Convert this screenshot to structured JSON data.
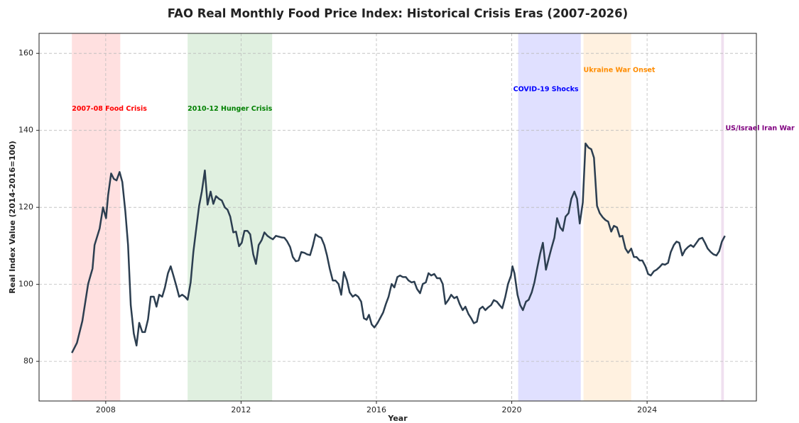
{
  "chart_data": {
    "type": "line",
    "title": "FAO Real Monthly Food Price Index: Historical Crisis Eras (2007-2026)",
    "x_label": "Year",
    "y_label": "Real Index Value (2014-2016=100)",
    "color": "#2c3e50",
    "grid": true,
    "xlim": [
      2006.03,
      2027.23
    ],
    "ylim": [
      69.7,
      165.2
    ],
    "xticks": [
      2008,
      2012,
      2016,
      2020,
      2024
    ],
    "yticks": [
      80,
      100,
      120,
      140,
      160
    ],
    "eras": [
      {
        "label": "2007-08 Food Crisis",
        "start": 2007.0,
        "end": 2008.43,
        "color": "#ff0000"
      },
      {
        "label": "2010-12 Hunger Crisis",
        "start": 2010.42,
        "end": 2012.92,
        "color": "#008000"
      },
      {
        "label": "COVID-19 Shocks",
        "start": 2020.19,
        "end": 2022.04,
        "color": "#0000ff"
      },
      {
        "label": "Ukraine War Onset",
        "start": 2022.12,
        "end": 2023.53,
        "color": "#ff8c00"
      },
      {
        "label": "US/Israel Iran War",
        "start": 2026.19,
        "end": 2026.27,
        "color": "#800080"
      }
    ],
    "x": [
      2007.0,
      2007.15,
      2007.31,
      2007.48,
      2007.61,
      2007.67,
      2007.82,
      2007.92,
      2008.01,
      2008.07,
      2008.16,
      2008.24,
      2008.32,
      2008.41,
      2008.49,
      2008.58,
      2008.66,
      2008.74,
      2008.83,
      2008.91,
      2008.99,
      2009.08,
      2009.16,
      2009.25,
      2009.33,
      2009.42,
      2009.5,
      2009.58,
      2009.67,
      2009.75,
      2009.84,
      2009.92,
      2010.0,
      2010.09,
      2010.17,
      2010.26,
      2010.34,
      2010.42,
      2010.51,
      2010.59,
      2010.68,
      2010.76,
      2010.84,
      2010.93,
      2011.01,
      2011.1,
      2011.18,
      2011.26,
      2011.35,
      2011.43,
      2011.52,
      2011.6,
      2011.68,
      2011.77,
      2011.85,
      2011.94,
      2012.02,
      2012.1,
      2012.19,
      2012.27,
      2012.36,
      2012.44,
      2012.52,
      2012.61,
      2012.69,
      2012.78,
      2012.86,
      2012.94,
      2013.03,
      2013.11,
      2013.2,
      2013.28,
      2013.36,
      2013.45,
      2013.53,
      2013.62,
      2013.7,
      2013.78,
      2013.87,
      2013.95,
      2014.04,
      2014.12,
      2014.2,
      2014.29,
      2014.37,
      2014.46,
      2014.54,
      2014.62,
      2014.71,
      2014.79,
      2014.88,
      2014.96,
      2015.04,
      2015.13,
      2015.21,
      2015.3,
      2015.38,
      2015.46,
      2015.55,
      2015.63,
      2015.71,
      2015.78,
      2015.86,
      2015.94,
      2016.03,
      2016.11,
      2016.2,
      2016.28,
      2016.36,
      2016.45,
      2016.53,
      2016.62,
      2016.7,
      2016.78,
      2016.87,
      2016.95,
      2017.04,
      2017.12,
      2017.2,
      2017.29,
      2017.37,
      2017.46,
      2017.54,
      2017.62,
      2017.71,
      2017.79,
      2017.88,
      2017.96,
      2018.04,
      2018.13,
      2018.21,
      2018.3,
      2018.38,
      2018.46,
      2018.55,
      2018.63,
      2018.72,
      2018.8,
      2018.88,
      2018.97,
      2019.05,
      2019.14,
      2019.22,
      2019.3,
      2019.39,
      2019.47,
      2019.56,
      2019.64,
      2019.72,
      2019.81,
      2019.89,
      2019.98,
      2020.02,
      2020.08,
      2020.17,
      2020.25,
      2020.33,
      2020.42,
      2020.5,
      2020.59,
      2020.67,
      2020.75,
      2020.84,
      2020.92,
      2021.01,
      2021.09,
      2021.17,
      2021.26,
      2021.34,
      2021.43,
      2021.51,
      2021.59,
      2021.68,
      2021.76,
      2021.85,
      2021.93,
      2022.01,
      2022.1,
      2022.18,
      2022.27,
      2022.35,
      2022.43,
      2022.52,
      2022.6,
      2022.69,
      2022.77,
      2022.85,
      2022.94,
      2023.02,
      2023.11,
      2023.19,
      2023.27,
      2023.36,
      2023.44,
      2023.53,
      2023.61,
      2023.69,
      2023.78,
      2023.86,
      2023.95,
      2024.03,
      2024.11,
      2024.2,
      2024.28,
      2024.37,
      2024.45,
      2024.53,
      2024.62,
      2024.7,
      2024.79,
      2024.87,
      2024.95,
      2025.04,
      2025.12,
      2025.21,
      2025.29,
      2025.37,
      2025.46,
      2025.54,
      2025.63,
      2025.71,
      2025.79,
      2025.88,
      2025.96,
      2026.05,
      2026.13,
      2026.21,
      2026.3
    ],
    "values": [
      82.2,
      84.8,
      90.5,
      100.1,
      104.1,
      110.2,
      114.5,
      120.0,
      117.2,
      123.1,
      128.8,
      127.4,
      127.0,
      129.2,
      126.6,
      118.9,
      110.2,
      94.6,
      87.2,
      84.1,
      90.0,
      87.6,
      87.6,
      90.9,
      96.8,
      96.8,
      94.2,
      97.3,
      96.8,
      99.2,
      102.9,
      104.7,
      102.3,
      99.5,
      96.8,
      97.3,
      96.8,
      96.0,
      100.5,
      108.4,
      114.8,
      120.4,
      124.1,
      129.6,
      120.7,
      124.1,
      120.9,
      122.9,
      122.2,
      121.8,
      120.0,
      119.4,
      117.6,
      113.5,
      113.7,
      109.9,
      110.8,
      113.9,
      113.9,
      113.0,
      107.8,
      105.3,
      110.2,
      111.5,
      113.5,
      112.6,
      112.1,
      111.7,
      112.6,
      112.4,
      112.2,
      112.1,
      111.2,
      109.7,
      107.1,
      106.0,
      106.2,
      108.4,
      108.2,
      107.8,
      107.6,
      110.0,
      113.0,
      112.4,
      112.1,
      110.2,
      107.5,
      104.1,
      101.0,
      101.0,
      100.1,
      97.3,
      103.2,
      101.0,
      97.9,
      96.8,
      97.3,
      96.8,
      95.5,
      91.2,
      90.8,
      92.1,
      89.6,
      88.8,
      89.9,
      91.2,
      92.7,
      94.9,
      96.8,
      100.1,
      99.2,
      101.9,
      102.3,
      101.9,
      101.9,
      101.0,
      100.5,
      100.7,
      98.8,
      97.7,
      100.1,
      100.5,
      102.9,
      102.3,
      102.7,
      101.6,
      101.6,
      100.1,
      94.9,
      96.0,
      97.3,
      96.4,
      96.8,
      94.9,
      93.3,
      94.2,
      92.3,
      91.2,
      89.9,
      90.3,
      93.6,
      94.2,
      93.3,
      94.0,
      94.6,
      95.9,
      95.5,
      94.6,
      93.8,
      96.8,
      100.1,
      102.3,
      104.7,
      102.9,
      97.3,
      94.6,
      93.3,
      95.5,
      96.0,
      97.9,
      100.5,
      104.1,
      108.0,
      110.8,
      103.8,
      106.6,
      109.3,
      112.1,
      117.2,
      114.8,
      113.9,
      117.6,
      118.5,
      122.2,
      124.1,
      122.2,
      115.8,
      121.3,
      136.6,
      135.5,
      135.1,
      132.9,
      120.4,
      118.5,
      117.4,
      116.7,
      116.3,
      113.7,
      115.2,
      114.8,
      112.4,
      112.6,
      109.3,
      108.2,
      109.3,
      107.1,
      107.1,
      106.2,
      106.2,
      104.7,
      102.7,
      102.3,
      103.4,
      103.8,
      104.5,
      105.3,
      105.1,
      105.6,
      108.4,
      110.2,
      111.1,
      110.8,
      107.5,
      108.9,
      109.7,
      110.2,
      109.7,
      110.8,
      111.8,
      112.1,
      110.8,
      109.3,
      108.4,
      107.8,
      107.5,
      108.6,
      111.1,
      112.6
    ]
  }
}
